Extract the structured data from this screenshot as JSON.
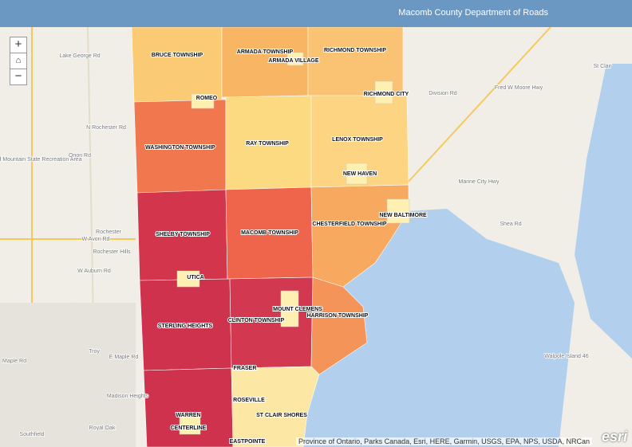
{
  "header": {
    "title": "Macomb County Department of Roads"
  },
  "zoom": {
    "in": "+",
    "out": "−"
  },
  "municipalities": [
    "BRUCE TOWNSHIP",
    "ARMADA TOWNSHIP",
    "ARMADA VILLAGE",
    "RICHMOND TOWNSHIP",
    "ROMEO",
    "RICHMOND CITY",
    "WASHINGTON TOWNSHIP",
    "RAY TOWNSHIP",
    "LENOX TOWNSHIP",
    "NEW HAVEN",
    "NEW BALTIMORE",
    "SHELBY TOWNSHIP",
    "MACOMB TOWNSHIP",
    "CHESTERFIELD TOWNSHIP",
    "UTICA",
    "MOUNT CLEMENS",
    "CLINTON TOWNSHIP",
    "HARRISON TOWNSHIP",
    "STERLING HEIGHTS",
    "FRASER",
    "ROSEVILLE",
    "WARREN",
    "ST CLAIR SHORES",
    "CENTERLINE",
    "EASTPOINTE"
  ],
  "basemap_labels": [
    "Lake George Rd",
    "Bald Mountain State Recreation Area",
    "Orion Rd",
    "N Rochester Rd",
    "Rochester",
    "W Avon Rd",
    "Rochester Hills",
    "W Auburn Rd",
    "Troy",
    "Maple Rd",
    "E Maple Rd",
    "Madison Heights",
    "Royal Oak",
    "Southfield",
    "Division Rd",
    "Fred W Moore Hwy",
    "St Clair",
    "Marine City Hwy",
    "Shea Rd",
    "Walpole Island 46"
  ],
  "attribution": "Province of Ontario, Parks Canada, Esri, HERE, Garmin, USGS, EPA, NPS, USDA, NRCan",
  "logo": "esri"
}
